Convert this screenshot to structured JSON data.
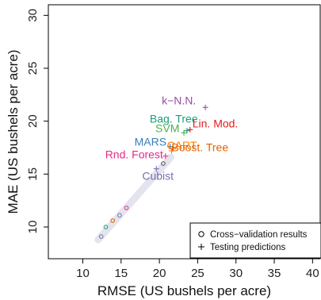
{
  "chart_data": {
    "type": "scatter",
    "xlabel": "RMSE (US bushels per acre)",
    "ylabel": "MAE (US bushels per acre)",
    "xlim": [
      5.5,
      41
    ],
    "ylim": [
      7,
      31
    ],
    "xticks": [
      10,
      15,
      20,
      25,
      30,
      35,
      40
    ],
    "yticks": [
      10,
      15,
      20,
      25,
      30
    ],
    "series": [
      {
        "name": "Cross−validation results",
        "marker": "circle",
        "points": [
          {
            "x": 12.4,
            "y": 9.1,
            "color": "#7570b3"
          },
          {
            "x": 13.0,
            "y": 10.0,
            "color": "#1b9e77"
          },
          {
            "x": 13.9,
            "y": 10.6,
            "color": "#d95f02"
          },
          {
            "x": 14.8,
            "y": 11.1,
            "color": "#7570b3"
          },
          {
            "x": 15.7,
            "y": 11.8,
            "color": "#e7298a"
          },
          {
            "x": 20.5,
            "y": 16.0,
            "color": "#555555"
          }
        ]
      },
      {
        "name": "Testing predictions",
        "marker": "plus",
        "points": [
          {
            "label": "k−N.N.",
            "x": 26.0,
            "y": 21.3,
            "color": "#984ea3"
          },
          {
            "label": "Bag. Tree",
            "x": 23.6,
            "y": 19.1,
            "color": "#1b9e77"
          },
          {
            "label": "Lin. Mod.",
            "x": 24.0,
            "y": 19.2,
            "color": "#e41a1c"
          },
          {
            "label": "SVM",
            "x": 23.2,
            "y": 18.9,
            "color": "#4daf4a"
          },
          {
            "label": "MARS",
            "x": 21.4,
            "y": 17.6,
            "color": "#377eb8"
          },
          {
            "label": "CART",
            "x": 21.6,
            "y": 17.2,
            "color": "#ff7f00"
          },
          {
            "label": "Boost. Tree",
            "x": 21.7,
            "y": 17.4,
            "color": "#e66101"
          },
          {
            "label": "Rnd. Forest",
            "x": 20.8,
            "y": 16.7,
            "color": "#e7298a"
          },
          {
            "label": "Cubist",
            "x": 19.6,
            "y": 15.5,
            "color": "#7570b3"
          }
        ]
      }
    ],
    "legend": {
      "position": "bottom-right",
      "items": [
        {
          "symbol": "circle",
          "label": "Cross−validation results"
        },
        {
          "symbol": "plus",
          "label": "Testing predictions"
        }
      ]
    }
  }
}
